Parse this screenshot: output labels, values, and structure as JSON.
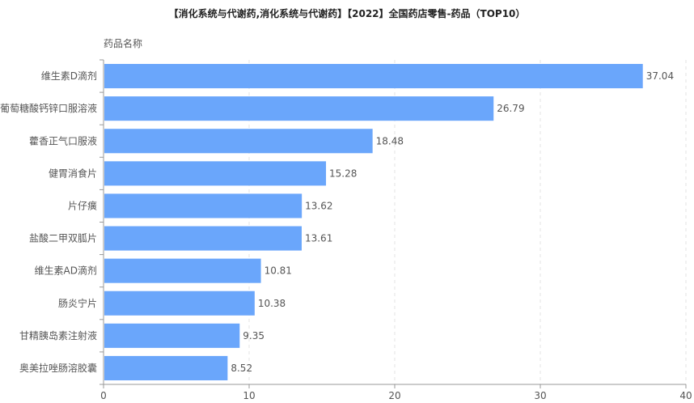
{
  "chart_data": {
    "type": "bar",
    "orientation": "horizontal",
    "title": "【消化系统与代谢药,消化系统与代谢药】【2022】全国药店零售-药品（TOP10）",
    "ylabel": "药品名称",
    "xlabel": "",
    "categories": [
      "维生素D滴剂",
      "葡萄糖酸钙锌口服溶液",
      "藿香正气口服液",
      "健胃消食片",
      "片仔癀",
      "盐酸二甲双胍片",
      "维生素AD滴剂",
      "肠炎宁片",
      "甘精胰岛素注射液",
      "奥美拉唑肠溶胶囊"
    ],
    "values": [
      37.04,
      26.79,
      18.48,
      15.28,
      13.62,
      13.61,
      10.81,
      10.38,
      9.35,
      8.52
    ],
    "value_labels": [
      "37.04",
      "26.79",
      "18.48",
      "15.28",
      "13.62",
      "13.61",
      "10.81",
      "10.38",
      "9.35",
      "8.52"
    ],
    "xlim": [
      0,
      40
    ],
    "xticks": [
      "0",
      "10",
      "20",
      "30",
      "40"
    ],
    "grid": true,
    "colors": {
      "bar": "#6aa6fb",
      "grid": "#e3e3e3",
      "axis": "#999999"
    }
  }
}
